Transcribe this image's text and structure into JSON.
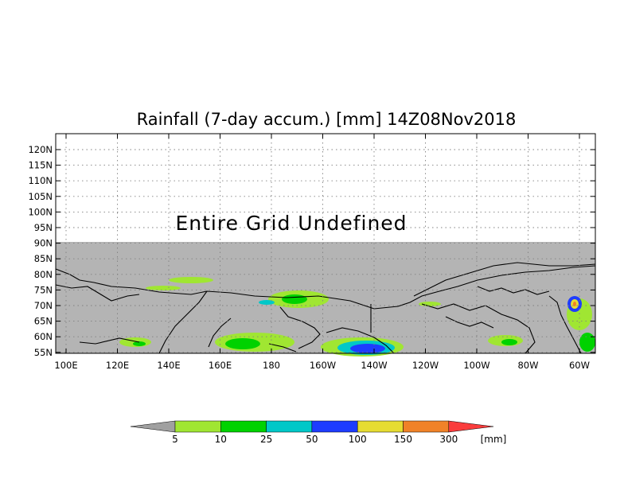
{
  "title": "Rainfall (7-day accum.) [mm] 14Z08Nov2018",
  "notice": "Entire Grid Undefined",
  "map": {
    "lon_labels": [
      "100E",
      "120E",
      "140E",
      "160E",
      "180",
      "160W",
      "140W",
      "120W",
      "100W",
      "80W",
      "60W"
    ],
    "lat_labels": [
      "120N",
      "115N",
      "110N",
      "105N",
      "100N",
      "95N",
      "90N",
      "85N",
      "80N",
      "75N",
      "70N",
      "65N",
      "60N",
      "55N"
    ],
    "undefined_color": "#b4b4b4",
    "coast_color": "#000000"
  },
  "legend": {
    "unit": "[mm]",
    "thresholds": [
      "5",
      "10",
      "25",
      "50",
      "100",
      "150",
      "300"
    ],
    "colors": [
      "#a0a0a0",
      "#a0e632",
      "#00d200",
      "#00c8c8",
      "#1e3cff",
      "#e6dc32",
      "#f08228",
      "#fa3c3c"
    ]
  }
}
